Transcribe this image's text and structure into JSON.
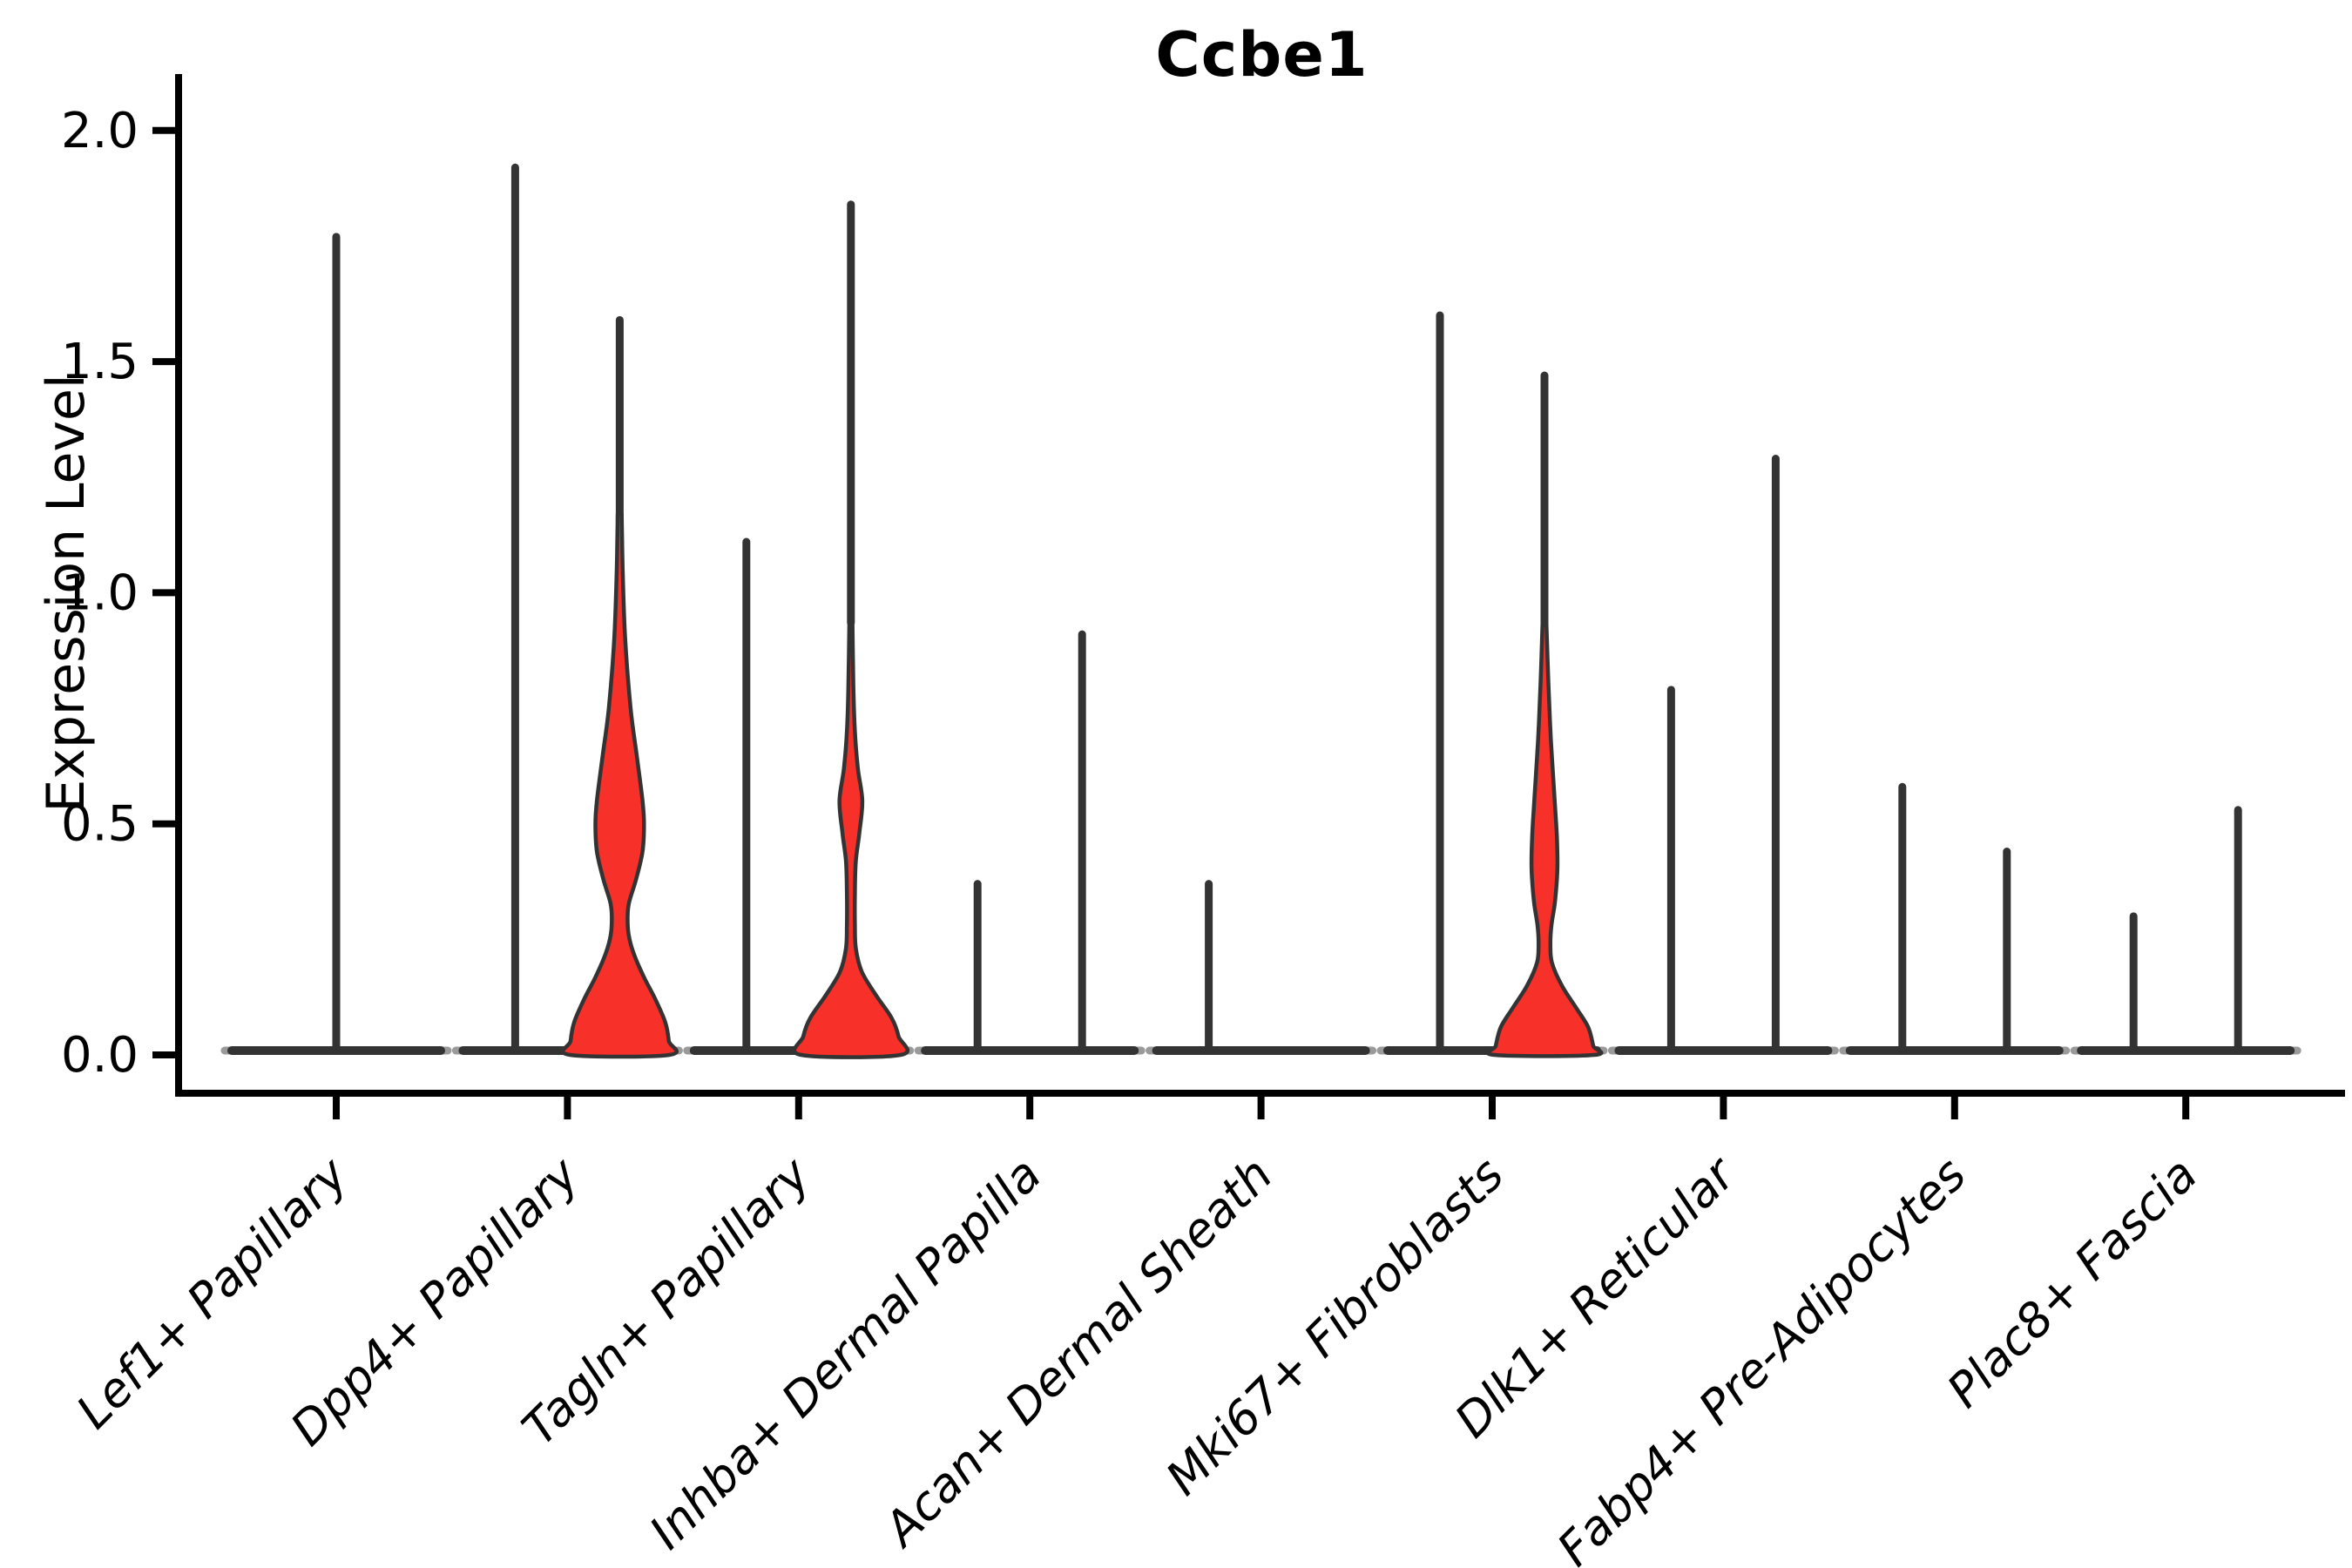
{
  "title": "Ccbe1",
  "ylabel": "Expression Level",
  "colors": {
    "violin_fill_red": "#F8302A",
    "violin_stroke": "#333333",
    "axis_color": "#000000",
    "baseline_tip_gray": "#9a9a9a",
    "background": "#ffffff"
  },
  "chart_data": {
    "type": "violin",
    "title": "Ccbe1",
    "xlabel": "",
    "ylabel": "Expression Level",
    "ylim": [
      -0.08,
      2.12
    ],
    "grid": false,
    "legend": "none",
    "yticks": [
      {
        "value": 0.0,
        "label": "0.0"
      },
      {
        "value": 0.5,
        "label": "0.5"
      },
      {
        "value": 1.0,
        "label": "1.0"
      },
      {
        "value": 1.5,
        "label": "1.5"
      },
      {
        "value": 2.0,
        "label": "2.0"
      }
    ],
    "categories": [
      {
        "label": "Lef1+ Papillary",
        "violins": [
          {
            "pos": "center",
            "fill": "none",
            "peak": 1.77
          }
        ]
      },
      {
        "label": "Dpp4+ Papillary",
        "violins": [
          {
            "pos": "left",
            "fill": "none",
            "peak": 1.92
          },
          {
            "pos": "right",
            "fill": "red",
            "peak": 1.59,
            "body_top": 1.17,
            "profile": [
              [
                1.17,
                0.04
              ],
              [
                1.05,
                0.06
              ],
              [
                0.9,
                0.11
              ],
              [
                0.75,
                0.22
              ],
              [
                0.65,
                0.34
              ],
              [
                0.55,
                0.46
              ],
              [
                0.5,
                0.49
              ],
              [
                0.44,
                0.46
              ],
              [
                0.38,
                0.33
              ],
              [
                0.33,
                0.19
              ],
              [
                0.3,
                0.16
              ],
              [
                0.26,
                0.18
              ],
              [
                0.22,
                0.28
              ],
              [
                0.17,
                0.48
              ],
              [
                0.12,
                0.72
              ],
              [
                0.07,
                0.92
              ],
              [
                0.03,
                0.99
              ],
              [
                0.0,
                1.0
              ]
            ]
          }
        ]
      },
      {
        "label": "Tagln+ Papillary",
        "violins": [
          {
            "pos": "left",
            "fill": "none",
            "peak": 1.11
          },
          {
            "pos": "right",
            "fill": "red",
            "peak": 1.84,
            "body_top": 0.95,
            "profile": [
              [
                0.95,
                0.03
              ],
              [
                0.8,
                0.05
              ],
              [
                0.7,
                0.08
              ],
              [
                0.62,
                0.14
              ],
              [
                0.55,
                0.23
              ],
              [
                0.48,
                0.17
              ],
              [
                0.42,
                0.1
              ],
              [
                0.35,
                0.08
              ],
              [
                0.28,
                0.08
              ],
              [
                0.23,
                0.1
              ],
              [
                0.18,
                0.22
              ],
              [
                0.13,
                0.5
              ],
              [
                0.08,
                0.82
              ],
              [
                0.04,
                0.96
              ],
              [
                0.0,
                1.0
              ]
            ]
          }
        ]
      },
      {
        "label": "Inhba+ Dermal Papilla",
        "violins": [
          {
            "pos": "left",
            "fill": "none",
            "peak": 0.37
          },
          {
            "pos": "right",
            "fill": "none",
            "peak": 0.91
          }
        ]
      },
      {
        "label": "Acan+ Dermal Sheath",
        "violins": [
          {
            "pos": "left",
            "fill": "none",
            "peak": 0.37
          },
          {
            "pos": "right",
            "fill": "none",
            "peak": 0.0
          }
        ]
      },
      {
        "label": "Mki67+ Fibroblasts",
        "violins": [
          {
            "pos": "left",
            "fill": "none",
            "peak": 1.6
          },
          {
            "pos": "right",
            "fill": "red",
            "peak": 1.47,
            "body_top": 0.93,
            "profile": [
              [
                0.93,
                0.04
              ],
              [
                0.8,
                0.08
              ],
              [
                0.68,
                0.13
              ],
              [
                0.56,
                0.2
              ],
              [
                0.47,
                0.25
              ],
              [
                0.4,
                0.26
              ],
              [
                0.33,
                0.21
              ],
              [
                0.28,
                0.14
              ],
              [
                0.24,
                0.12
              ],
              [
                0.2,
                0.15
              ],
              [
                0.15,
                0.35
              ],
              [
                0.1,
                0.65
              ],
              [
                0.06,
                0.88
              ],
              [
                0.02,
                0.98
              ],
              [
                0.0,
                1.0
              ]
            ]
          }
        ]
      },
      {
        "label": "Dlk1+ Reticular",
        "violins": [
          {
            "pos": "left",
            "fill": "none",
            "peak": 0.79
          },
          {
            "pos": "right",
            "fill": "none",
            "peak": 1.29
          }
        ]
      },
      {
        "label": "Fabp4+ Pre-Adipocytes",
        "violins": [
          {
            "pos": "left",
            "fill": "none",
            "peak": 0.58
          },
          {
            "pos": "right",
            "fill": "none",
            "peak": 0.44
          }
        ]
      },
      {
        "label": "Plac8+ Fascia",
        "violins": [
          {
            "pos": "left",
            "fill": "none",
            "peak": 0.3
          },
          {
            "pos": "right",
            "fill": "none",
            "peak": 0.53
          }
        ]
      }
    ]
  }
}
